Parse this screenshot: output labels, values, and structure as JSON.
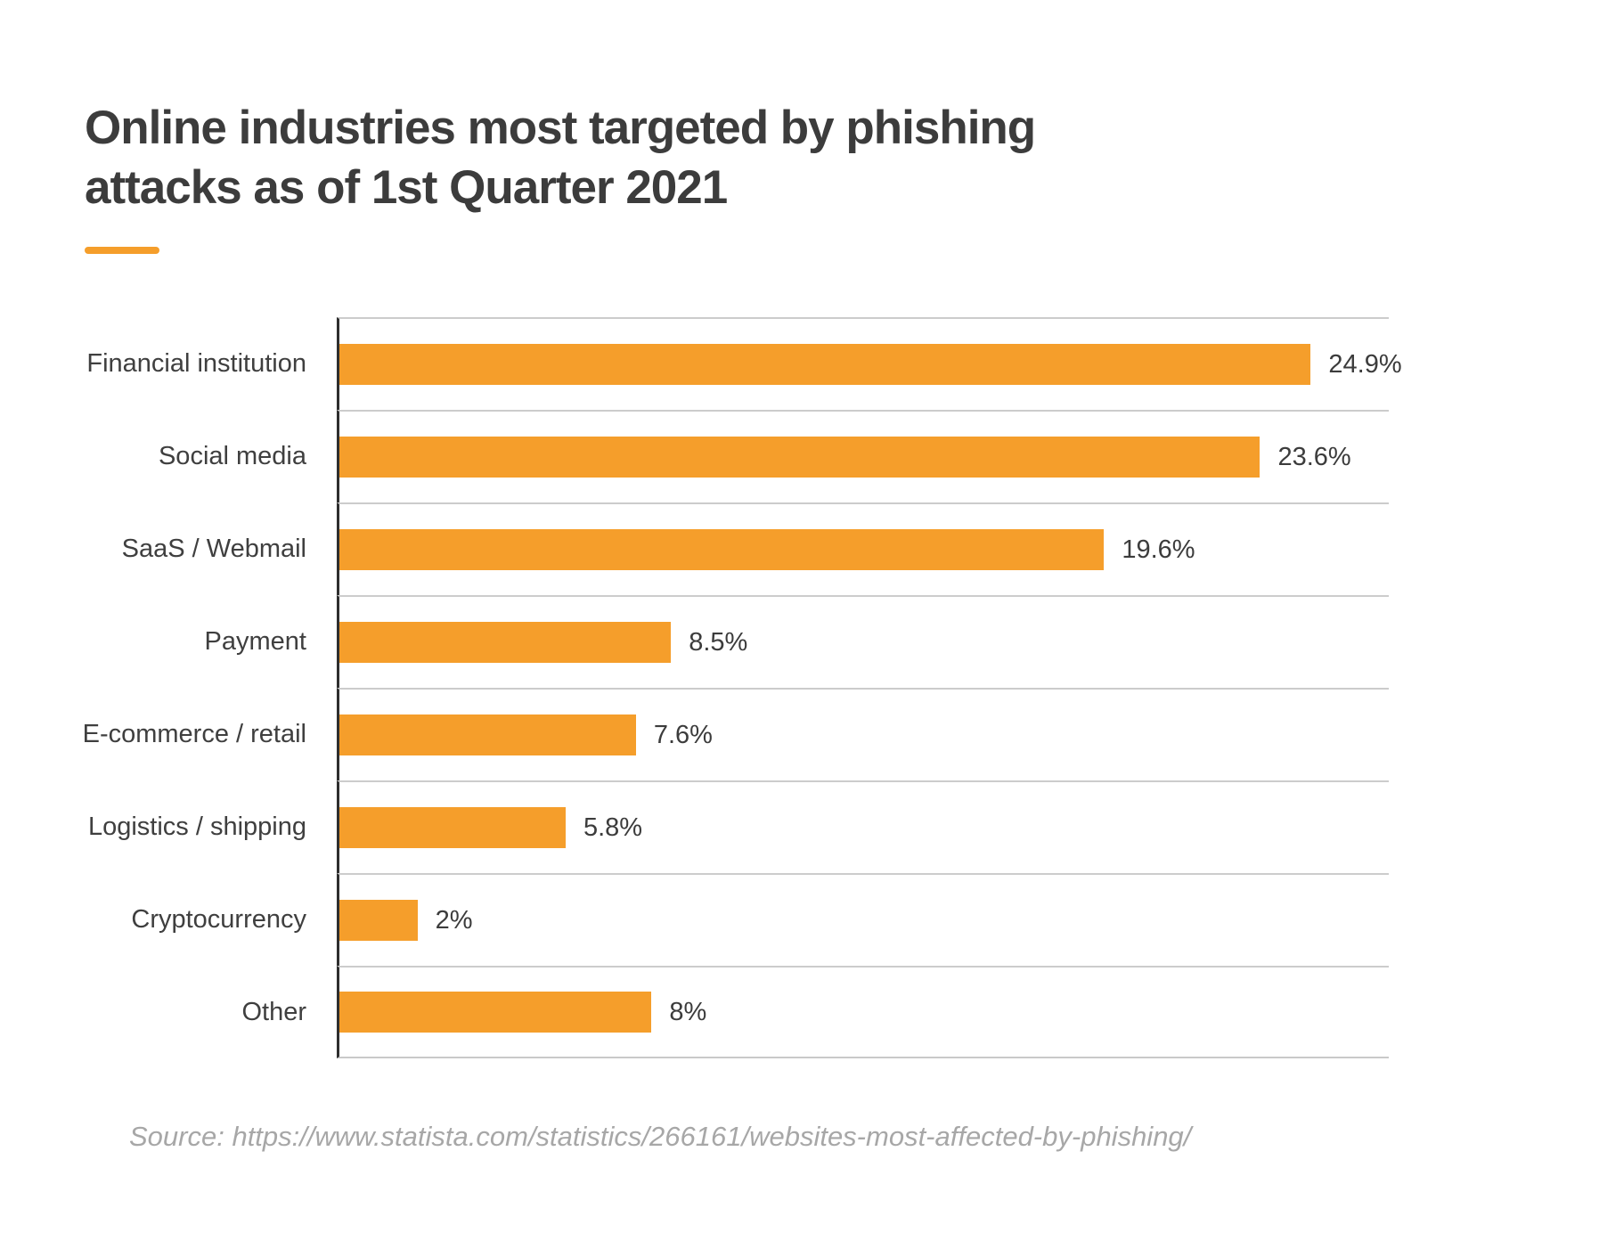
{
  "page": {
    "title": "Online industries most targeted by phishing attacks as of 1st Quarter 2021",
    "title_lines": [
      "Online industries most targeted by phishing",
      "attacks as of 1st Quarter 2021"
    ],
    "source": "Source: https://www.statista.com/statistics/266161/websites-most-affected-by-phishing/"
  },
  "colors": {
    "bar": "#f59e2b",
    "accent": "#f59e2b",
    "title_text": "#3c3c3c",
    "label_text": "#3f3f3f",
    "value_text": "#3c3c3c",
    "source_text": "#a7a7a7",
    "grid_line": "#cccccc",
    "axis_line": "#2e2e2e"
  },
  "chart_data": {
    "type": "bar",
    "orientation": "horizontal",
    "title": "Online industries most targeted by phishing attacks as of 1st Quarter 2021",
    "categories": [
      "Financial institution",
      "Social media",
      "SaaS / Webmail",
      "Payment",
      "E-commerce / retail",
      "Logistics / shipping",
      "Cryptocurrency",
      "Other"
    ],
    "values": [
      24.9,
      23.6,
      19.6,
      8.5,
      7.6,
      5.8,
      2,
      8
    ],
    "value_labels": [
      "24.9%",
      "23.6%",
      "19.6%",
      "8.5%",
      "7.6%",
      "5.8%",
      "2%",
      "8%"
    ],
    "xlabel": "",
    "ylabel": "",
    "xlim": [
      0,
      26.9
    ],
    "grid": "row-separator-lines-only",
    "legend": "none",
    "bar_color": "#f59e2b",
    "source": "Source: https://www.statista.com/statistics/266161/websites-most-affected-by-phishing/"
  }
}
